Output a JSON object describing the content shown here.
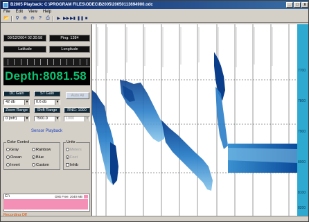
{
  "window": {
    "title": "B2005 Playback: C:\\PROGRAM FILES\\ODEC\\B2005\\20050113694900.odc",
    "controls": [
      "_",
      "□",
      "x"
    ]
  },
  "menu": [
    "File",
    "Edit",
    "View",
    "Help"
  ],
  "toolbar": {
    "icons": [
      "open-icon",
      "search-icon",
      "zoom-in-icon",
      "zoom-out-icon",
      "help-icon",
      "print-icon",
      "play-icon",
      "fast-forward-icon",
      "fast-forward-end-icon",
      "pause-icon",
      "stop-icon"
    ]
  },
  "panel": {
    "datetime": "09/12/2004 02:30:58",
    "ping": "Ping: 1384",
    "latitude_label": "Latitude",
    "longitude_label": "Longitude",
    "depth": "Depth:8081.58",
    "dc_gain_label": "DC Gain",
    "st_gain_label": "ST Gain",
    "auto_all_label": "Auto All",
    "dc_gain_value": "42 db",
    "st_gain_value": "0.6 db",
    "zoom_range_label": "Zoom Range",
    "shift_range_label": "Shift Range",
    "rng_label": "RNG: 1000",
    "zoom_range_value": "0 (mfr)",
    "shift_range_value": "7500.0",
    "rng_value": "1000",
    "sensor_playback": "Sensor Playback",
    "color_control_label": "Color Control",
    "color_options": [
      {
        "label": "Gray",
        "selected": false
      },
      {
        "label": "Rainbow",
        "selected": false
      },
      {
        "label": "Ocean",
        "selected": false
      },
      {
        "label": "Blue",
        "selected": true
      },
      {
        "label": "Invert",
        "selected": false
      },
      {
        "label": "Custom",
        "selected": false
      }
    ],
    "units_label": "Units",
    "unit_options": [
      {
        "label": "Meters",
        "selected": false
      },
      {
        "label": "Feet",
        "selected": true
      }
    ],
    "inhibit_label": "Inhib",
    "disk_label": "C:\\",
    "disk_free": "Disk Free: 2040 MB",
    "disk_used": "Disk Used: 0 MB",
    "recording": "Recording Off"
  },
  "colors": {
    "accent_blue": "#0a246a",
    "depth_green": "#0cc070",
    "echo_blue": "#1a6ab8",
    "scale_cyan": "#2fa9d0",
    "disk_pink": "#f48fb6"
  },
  "scale_labels": [
    "7700",
    "7800",
    "7900",
    "8000",
    "8100",
    "8200"
  ]
}
